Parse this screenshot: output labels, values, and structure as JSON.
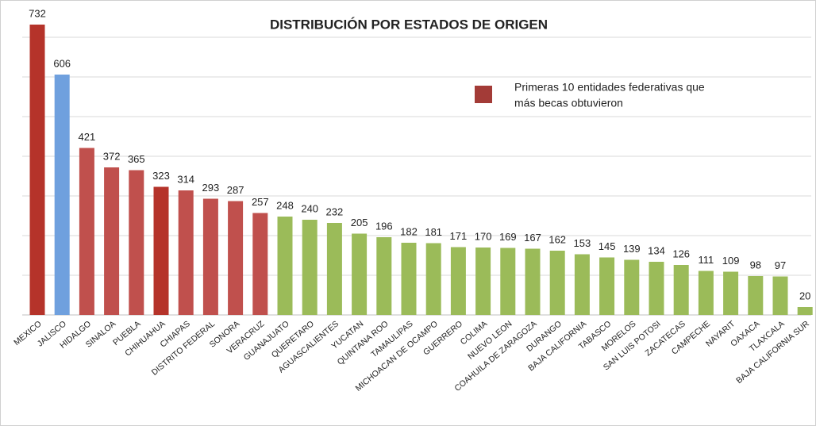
{
  "chart_data": {
    "type": "bar",
    "title": "DISTRIBUCIÓN POR ESTADOS DE ORIGEN",
    "categories": [
      "MEXICO",
      "JALISCO",
      "HIDALGO",
      "SINALOA",
      "PUEBLA",
      "CHIHUAHUA",
      "CHIAPAS",
      "DISTRITO FEDERAL",
      "SONORA",
      "VERACRUZ",
      "GUANAJUATO",
      "QUERETARO",
      "AGUASCALIENTES",
      "YUCATAN",
      "QUINTANA ROO",
      "TAMAULIPAS",
      "MICHOACAN DE OCAMPO",
      "GUERRERO",
      "COLIMA",
      "NUEVO LEON",
      "COAHUILA DE ZARAGOZA",
      "DURANGO",
      "BAJA CALIFORNIA",
      "TABASCO",
      "MORELOS",
      "SAN LUIS POTOSI",
      "ZACATECAS",
      "CAMPECHE",
      "NAYARIT",
      "OAXACA",
      "TLAXCALA",
      "BAJA CALIFORNIA SUR"
    ],
    "values": [
      732,
      606,
      421,
      372,
      365,
      323,
      314,
      293,
      287,
      257,
      248,
      240,
      232,
      205,
      196,
      182,
      181,
      171,
      170,
      169,
      167,
      162,
      153,
      145,
      139,
      134,
      126,
      111,
      109,
      98,
      97,
      20
    ],
    "colors": [
      "#b5332a",
      "#6fa0de",
      "#c0504d",
      "#c0504d",
      "#c0504d",
      "#b5332a",
      "#c0504d",
      "#c0504d",
      "#c0504d",
      "#c0504d",
      "#9bbb59",
      "#9bbb59",
      "#9bbb59",
      "#9bbb59",
      "#9bbb59",
      "#9bbb59",
      "#9bbb59",
      "#9bbb59",
      "#9bbb59",
      "#9bbb59",
      "#9bbb59",
      "#9bbb59",
      "#9bbb59",
      "#9bbb59",
      "#9bbb59",
      "#9bbb59",
      "#9bbb59",
      "#9bbb59",
      "#9bbb59",
      "#9bbb59",
      "#9bbb59",
      "#9bbb59"
    ],
    "ylim": [
      0,
      800
    ],
    "yticks": [
      100,
      200,
      300,
      400,
      500,
      600,
      700
    ],
    "grid": true,
    "legend": {
      "color": "#a33b37",
      "lines": [
        "Primeras 10 entidades federativas que",
        "más becas obtuvieron"
      ]
    }
  }
}
